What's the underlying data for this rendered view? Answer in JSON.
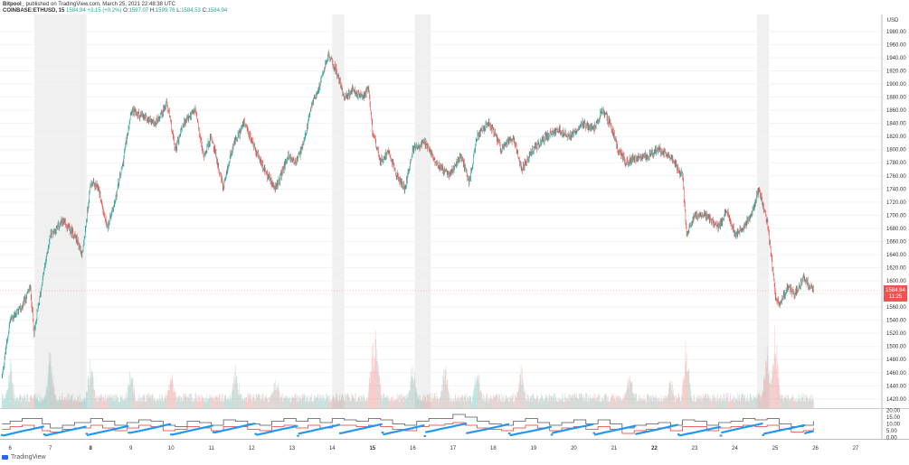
{
  "header": {
    "publisher": "Bitpool_",
    "published_text": "published on TradingView.com, March 25, 2021 22:48:38 UTC",
    "symbol": "COINBASE:ETHUSD, 15",
    "last": "1584.94",
    "change": "+3.15 (+0.2%)",
    "o_label": "O:",
    "o_value": "1597.07",
    "h_label": "H:",
    "h_value": "1599.76",
    "l_label": "L:",
    "l_value": "1584.53",
    "c_label": "C:",
    "c_value": "1584.94"
  },
  "price_axis": {
    "currency": "USD",
    "current_price_label": "1584.94",
    "countdown_label": "11:25"
  },
  "footer": {
    "brand": "TradingView"
  },
  "colors": {
    "up": "#26a69a",
    "down": "#ef5350",
    "blue": "#2196f3",
    "gray_line": "#555555",
    "red_line": "#e53935",
    "weekend_shade": "#f0f0f0"
  },
  "chart_data": [
    {
      "type": "candlestick",
      "interval": "15",
      "y_ticks": [
        1420,
        1440,
        1460,
        1480,
        1500,
        1520,
        1540,
        1560,
        1580,
        1600,
        1620,
        1640,
        1660,
        1680,
        1700,
        1720,
        1740,
        1760,
        1780,
        1800,
        1820,
        1840,
        1860,
        1880,
        1900,
        1920,
        1940,
        1960,
        1980
      ],
      "ylim": [
        1406,
        2006
      ],
      "x_labels": [
        "6",
        "7",
        "8",
        "9",
        "10",
        "11",
        "12",
        "13",
        "14",
        "15",
        "16",
        "17",
        "18",
        "19",
        "20",
        "21",
        "22",
        "23",
        "24",
        "25",
        "26",
        "27"
      ],
      "bold_x_labels": [
        "8",
        "15",
        "22"
      ],
      "xlim": [
        5.75,
        27.65
      ],
      "last_day": 25.95,
      "shaded_days": [
        [
          6.6,
          7.9
        ],
        [
          14.0,
          14.3
        ],
        [
          16.05,
          16.45
        ],
        [
          24.55,
          24.85
        ]
      ],
      "price_path": [
        [
          5.8,
          1455
        ],
        [
          6.0,
          1540
        ],
        [
          6.3,
          1560
        ],
        [
          6.5,
          1590
        ],
        [
          6.6,
          1520
        ],
        [
          6.8,
          1600
        ],
        [
          7.0,
          1670
        ],
        [
          7.3,
          1690
        ],
        [
          7.6,
          1670
        ],
        [
          7.8,
          1640
        ],
        [
          8.0,
          1750
        ],
        [
          8.2,
          1740
        ],
        [
          8.4,
          1680
        ],
        [
          8.6,
          1720
        ],
        [
          8.8,
          1780
        ],
        [
          9.0,
          1860
        ],
        [
          9.3,
          1850
        ],
        [
          9.6,
          1840
        ],
        [
          9.9,
          1870
        ],
        [
          10.1,
          1800
        ],
        [
          10.3,
          1840
        ],
        [
          10.6,
          1860
        ],
        [
          10.8,
          1790
        ],
        [
          11.0,
          1820
        ],
        [
          11.3,
          1740
        ],
        [
          11.5,
          1800
        ],
        [
          11.8,
          1840
        ],
        [
          12.1,
          1800
        ],
        [
          12.3,
          1770
        ],
        [
          12.6,
          1740
        ],
        [
          12.9,
          1790
        ],
        [
          13.1,
          1780
        ],
        [
          13.3,
          1810
        ],
        [
          13.5,
          1870
        ],
        [
          13.7,
          1900
        ],
        [
          13.9,
          1945
        ],
        [
          14.1,
          1920
        ],
        [
          14.3,
          1880
        ],
        [
          14.5,
          1890
        ],
        [
          14.7,
          1880
        ],
        [
          14.9,
          1890
        ],
        [
          15.0,
          1830
        ],
        [
          15.2,
          1780
        ],
        [
          15.4,
          1800
        ],
        [
          15.6,
          1760
        ],
        [
          15.8,
          1740
        ],
        [
          16.0,
          1800
        ],
        [
          16.3,
          1810
        ],
        [
          16.6,
          1780
        ],
        [
          16.9,
          1760
        ],
        [
          17.2,
          1790
        ],
        [
          17.4,
          1750
        ],
        [
          17.6,
          1820
        ],
        [
          17.9,
          1840
        ],
        [
          18.2,
          1800
        ],
        [
          18.5,
          1820
        ],
        [
          18.7,
          1770
        ],
        [
          19.0,
          1800
        ],
        [
          19.3,
          1820
        ],
        [
          19.6,
          1830
        ],
        [
          19.9,
          1820
        ],
        [
          20.2,
          1840
        ],
        [
          20.5,
          1830
        ],
        [
          20.7,
          1860
        ],
        [
          20.9,
          1840
        ],
        [
          21.1,
          1800
        ],
        [
          21.3,
          1780
        ],
        [
          21.6,
          1790
        ],
        [
          21.8,
          1790
        ],
        [
          22.1,
          1800
        ],
        [
          22.4,
          1790
        ],
        [
          22.7,
          1760
        ],
        [
          22.8,
          1670
        ],
        [
          23.0,
          1700
        ],
        [
          23.3,
          1700
        ],
        [
          23.6,
          1680
        ],
        [
          23.8,
          1710
        ],
        [
          24.0,
          1670
        ],
        [
          24.2,
          1680
        ],
        [
          24.4,
          1700
        ],
        [
          24.6,
          1740
        ],
        [
          24.8,
          1690
        ],
        [
          24.9,
          1640
        ],
        [
          25.0,
          1580
        ],
        [
          25.1,
          1560
        ],
        [
          25.3,
          1590
        ],
        [
          25.5,
          1580
        ],
        [
          25.7,
          1605
        ],
        [
          25.95,
          1585
        ]
      ],
      "volume_peaks": [
        [
          6.0,
          0.35
        ],
        [
          7.0,
          0.5
        ],
        [
          8.0,
          0.4
        ],
        [
          9.0,
          0.3
        ],
        [
          10.0,
          0.25
        ],
        [
          11.6,
          0.3
        ],
        [
          12.6,
          0.2
        ],
        [
          15.0,
          0.5
        ],
        [
          15.1,
          0.7
        ],
        [
          16.0,
          0.35
        ],
        [
          16.8,
          0.4
        ],
        [
          17.6,
          0.35
        ],
        [
          18.7,
          0.3
        ],
        [
          21.4,
          0.25
        ],
        [
          22.4,
          0.2
        ],
        [
          22.8,
          0.6
        ],
        [
          24.8,
          0.55
        ],
        [
          25.0,
          0.75
        ]
      ]
    },
    {
      "type": "line",
      "y_ticks": [
        0,
        5,
        10,
        15,
        20
      ],
      "ylim": [
        -1,
        21
      ],
      "series": [
        {
          "name": "",
          "color": "#555555",
          "values": [
            [
              5.8,
              10
            ],
            [
              6.0,
              12
            ],
            [
              6.3,
              14
            ],
            [
              6.6,
              14
            ],
            [
              6.8,
              10
            ],
            [
              7.0,
              7
            ],
            [
              7.3,
              9
            ],
            [
              7.6,
              11
            ],
            [
              8.0,
              14
            ],
            [
              8.3,
              12
            ],
            [
              8.6,
              9
            ],
            [
              8.9,
              11
            ],
            [
              9.2,
              13
            ],
            [
              9.5,
              12
            ],
            [
              9.8,
              9
            ],
            [
              10.1,
              8
            ],
            [
              10.4,
              12
            ],
            [
              10.7,
              11
            ],
            [
              11.0,
              9
            ],
            [
              11.3,
              13
            ],
            [
              11.6,
              12
            ],
            [
              11.9,
              10
            ],
            [
              12.2,
              9
            ],
            [
              12.5,
              12
            ],
            [
              12.8,
              14
            ],
            [
              13.1,
              12
            ],
            [
              13.4,
              14
            ],
            [
              13.7,
              11
            ],
            [
              14.0,
              14
            ],
            [
              14.3,
              13
            ],
            [
              14.6,
              12
            ],
            [
              14.9,
              14
            ],
            [
              15.2,
              13
            ],
            [
              15.5,
              10
            ],
            [
              15.8,
              9
            ],
            [
              16.1,
              12
            ],
            [
              16.4,
              14
            ],
            [
              16.8,
              14
            ],
            [
              17.0,
              17
            ],
            [
              17.3,
              15
            ],
            [
              17.6,
              12
            ],
            [
              17.9,
              10
            ],
            [
              18.2,
              9
            ],
            [
              18.5,
              12
            ],
            [
              18.8,
              14
            ],
            [
              19.1,
              11
            ],
            [
              19.4,
              9
            ],
            [
              19.7,
              11
            ],
            [
              20.0,
              13
            ],
            [
              20.3,
              10
            ],
            [
              20.6,
              13
            ],
            [
              20.9,
              10
            ],
            [
              21.2,
              7
            ],
            [
              21.5,
              9
            ],
            [
              21.8,
              10
            ],
            [
              22.1,
              11
            ],
            [
              22.4,
              9
            ],
            [
              22.7,
              13
            ],
            [
              23.0,
              12
            ],
            [
              23.3,
              9
            ],
            [
              23.6,
              11
            ],
            [
              23.9,
              12
            ],
            [
              24.2,
              14
            ],
            [
              24.5,
              13
            ],
            [
              24.8,
              14
            ],
            [
              25.1,
              10
            ],
            [
              25.4,
              8
            ],
            [
              25.7,
              9
            ],
            [
              25.95,
              12
            ]
          ]
        },
        {
          "name": "",
          "color": "#e53935",
          "values": [
            [
              5.8,
              6
            ],
            [
              6.0,
              8
            ],
            [
              6.3,
              9
            ],
            [
              6.6,
              7
            ],
            [
              6.8,
              5
            ],
            [
              7.0,
              4
            ],
            [
              7.3,
              6
            ],
            [
              7.6,
              7
            ],
            [
              8.0,
              9
            ],
            [
              8.3,
              7
            ],
            [
              8.6,
              5
            ],
            [
              8.9,
              7
            ],
            [
              9.2,
              9
            ],
            [
              9.5,
              8
            ],
            [
              9.8,
              5
            ],
            [
              10.1,
              6
            ],
            [
              10.4,
              8
            ],
            [
              10.7,
              7
            ],
            [
              11.0,
              5
            ],
            [
              11.3,
              8
            ],
            [
              11.6,
              8
            ],
            [
              11.9,
              6
            ],
            [
              12.2,
              5
            ],
            [
              12.5,
              8
            ],
            [
              12.8,
              9
            ],
            [
              13.1,
              7
            ],
            [
              13.4,
              9
            ],
            [
              13.7,
              7
            ],
            [
              14.0,
              9
            ],
            [
              14.3,
              9
            ],
            [
              14.6,
              8
            ],
            [
              14.9,
              9
            ],
            [
              15.2,
              8
            ],
            [
              15.5,
              6
            ],
            [
              15.8,
              5
            ],
            [
              16.1,
              8
            ],
            [
              16.4,
              9
            ],
            [
              16.8,
              10
            ],
            [
              17.0,
              11
            ],
            [
              17.3,
              9
            ],
            [
              17.6,
              7
            ],
            [
              17.9,
              6
            ],
            [
              18.2,
              5
            ],
            [
              18.5,
              7
            ],
            [
              18.8,
              9
            ],
            [
              19.1,
              7
            ],
            [
              19.4,
              5
            ],
            [
              19.7,
              7
            ],
            [
              20.0,
              8
            ],
            [
              20.3,
              6
            ],
            [
              20.6,
              8
            ],
            [
              20.9,
              6
            ],
            [
              21.2,
              3
            ],
            [
              21.5,
              5
            ],
            [
              21.8,
              6
            ],
            [
              22.1,
              7
            ],
            [
              22.4,
              5
            ],
            [
              22.7,
              8
            ],
            [
              23.0,
              8
            ],
            [
              23.3,
              5
            ],
            [
              23.6,
              7
            ],
            [
              23.9,
              8
            ],
            [
              24.2,
              9
            ],
            [
              24.5,
              8
            ],
            [
              24.8,
              9
            ],
            [
              25.1,
              6
            ],
            [
              25.4,
              4
            ],
            [
              25.7,
              5
            ],
            [
              25.95,
              7
            ]
          ]
        }
      ]
    }
  ]
}
